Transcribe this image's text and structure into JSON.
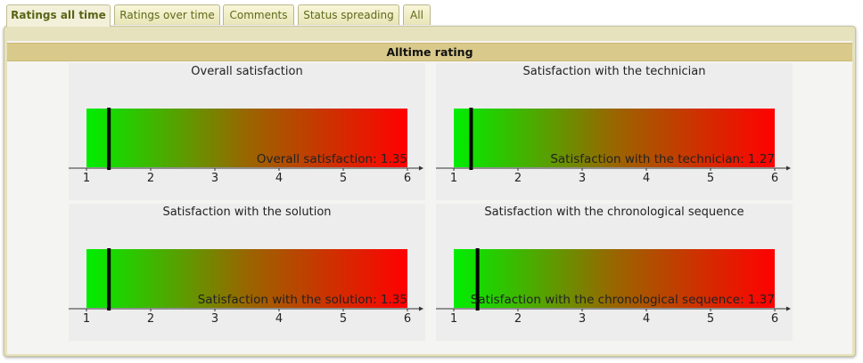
{
  "tabs": [
    {
      "label": "Ratings all time",
      "active": true
    },
    {
      "label": "Ratings over time",
      "active": false
    },
    {
      "label": "Comments",
      "active": false
    },
    {
      "label": "Status spreading",
      "active": false
    },
    {
      "label": "All",
      "active": false
    }
  ],
  "section_title": "Alltime rating",
  "gradient_colors": {
    "good": "#00ee00",
    "mid": "#996600",
    "bad": "#ff0000"
  },
  "chart_data": [
    {
      "type": "bar",
      "title": "Overall satisfaction",
      "label": "Overall satisfaction: 1.35",
      "value": 1.35,
      "xlim": [
        1,
        6
      ],
      "ticks": [
        "1",
        "2",
        "3",
        "4",
        "5",
        "6"
      ]
    },
    {
      "type": "bar",
      "title": "Satisfaction with the technician",
      "label": "Satisfaction with the technician: 1.27",
      "value": 1.27,
      "xlim": [
        1,
        6
      ],
      "ticks": [
        "1",
        "2",
        "3",
        "4",
        "5",
        "6"
      ]
    },
    {
      "type": "bar",
      "title": "Satisfaction with the solution",
      "label": "Satisfaction with the solution: 1.35",
      "value": 1.35,
      "xlim": [
        1,
        6
      ],
      "ticks": [
        "1",
        "2",
        "3",
        "4",
        "5",
        "6"
      ]
    },
    {
      "type": "bar",
      "title": "Satisfaction with the chronological sequence",
      "label": "Satisfaction with the chronological sequence: 1.37",
      "value": 1.37,
      "xlim": [
        1,
        6
      ],
      "ticks": [
        "1",
        "2",
        "3",
        "4",
        "5",
        "6"
      ]
    }
  ]
}
